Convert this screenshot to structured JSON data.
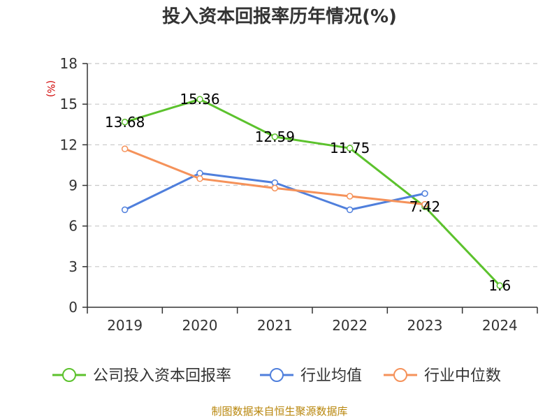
{
  "title": "投入资本回报率历年情况(%)",
  "source": "制图数据来自恒生聚源数据库",
  "colors": {
    "company": "#5cc22d",
    "industry_avg": "#4f7fdc",
    "industry_median": "#f5925a",
    "grid": "#c8c8c8",
    "axis": "#333333",
    "ylabel": "#d00000",
    "source": "#b8860b"
  },
  "chart_data": {
    "type": "line",
    "title": "投入资本回报率历年情况(%)",
    "xlabel": "",
    "ylabel": "(%)",
    "categories": [
      "2019",
      "2020",
      "2021",
      "2022",
      "2023",
      "2024"
    ],
    "ylim": [
      0,
      18
    ],
    "yticks": [
      0,
      3,
      6,
      9,
      12,
      15,
      18
    ],
    "grid": true,
    "legend_position": "bottom",
    "series": [
      {
        "name": "公司投入资本回报率",
        "values": [
          13.68,
          15.36,
          12.59,
          11.75,
          7.42,
          1.6
        ],
        "labels": [
          "13.68",
          "15.36",
          "12.59",
          "11.75",
          "7.42",
          "1.6"
        ]
      },
      {
        "name": "行业均值",
        "values": [
          7.2,
          9.9,
          9.2,
          7.2,
          8.4,
          null
        ]
      },
      {
        "name": "行业中位数",
        "values": [
          11.7,
          9.5,
          8.8,
          8.2,
          7.6,
          null
        ]
      }
    ]
  }
}
